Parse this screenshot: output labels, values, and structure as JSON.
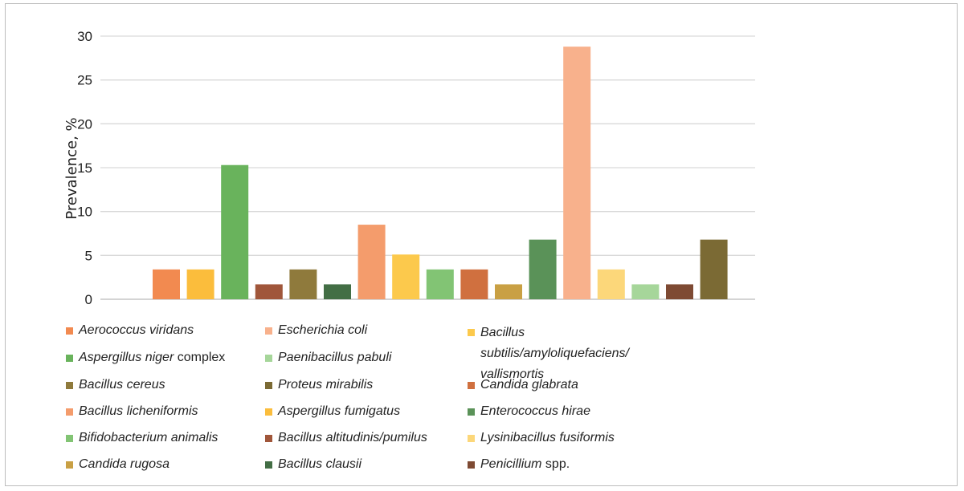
{
  "chart_data": {
    "type": "bar",
    "title": "",
    "xlabel": "",
    "ylabel": "Prevalence, %",
    "ylim": [
      0,
      30
    ],
    "yticks": [
      0,
      5,
      10,
      15,
      20,
      25,
      30
    ],
    "grid": true,
    "legend_placement": "bottom",
    "categories": [
      "Aerococcus viridans",
      "Aspergillus fumigatus",
      "Aspergillus niger complex",
      "Bacillus altitudinis/pumilus",
      "Bacillus cereus",
      "Bacillus clausii",
      "Bacillus licheniformis",
      "Bacillus subtilis/amyloliquefaciens/vallismortis",
      "Bifidobacterium animalis",
      "Candida glabrata",
      "Candida rugosa",
      "Enterococcus hirae",
      "Escherichia coli",
      "Lysinibacillus fusiformis",
      "Paenibacillus pabuli",
      "Penicillium spp.",
      "Proteus mirabilis"
    ],
    "values": [
      3.4,
      3.4,
      15.3,
      1.7,
      3.4,
      1.7,
      8.5,
      5.1,
      3.4,
      3.4,
      1.7,
      6.8,
      28.8,
      3.4,
      1.7,
      1.7,
      6.8
    ],
    "colors": [
      "#f28a50",
      "#fbbd3c",
      "#69b35c",
      "#a0563a",
      "#8f7a3c",
      "#436e45",
      "#f49c6c",
      "#fcc94c",
      "#82c474",
      "#d0703f",
      "#c9a044",
      "#5a9258",
      "#f8b18c",
      "#fcd77a",
      "#a6d69a",
      "#7e4a33",
      "#7b6a34"
    ]
  },
  "legend": [
    {
      "italic": "Aerococcus viridans",
      "suffix": "",
      "color": "#f28a50"
    },
    {
      "italic": "Escherichia coli",
      "suffix": "",
      "color": "#f8b18c"
    },
    {
      "italic": "Bacillus subtilis/amyloliquefaciens/ vallismortis",
      "suffix": "",
      "color": "#fcc94c"
    },
    {
      "italic": "Aspergillus niger",
      "suffix": " complex",
      "color": "#69b35c"
    },
    {
      "italic": "Paenibacillus pabuli",
      "suffix": "",
      "color": "#a6d69a"
    },
    {
      "italic": "Bacillus cereus",
      "suffix": "",
      "color": "#8f7a3c"
    },
    {
      "italic": "Proteus mirabilis",
      "suffix": "",
      "color": "#7b6a34"
    },
    {
      "italic": "Candida glabrata",
      "suffix": "",
      "color": "#d0703f"
    },
    {
      "italic": "Bacillus licheniformis",
      "suffix": "",
      "color": "#f49c6c"
    },
    {
      "italic": "Aspergillus fumigatus",
      "suffix": "",
      "color": "#fbbd3c"
    },
    {
      "italic": "Enterococcus hirae",
      "suffix": "",
      "color": "#5a9258"
    },
    {
      "italic": "Bifidobacterium animalis",
      "suffix": "",
      "color": "#82c474"
    },
    {
      "italic": "Bacillus altitudinis/pumilus",
      "suffix": "",
      "color": "#a0563a"
    },
    {
      "italic": "Lysinibacillus fusiformis",
      "suffix": "",
      "color": "#fcd77a"
    },
    {
      "italic": "Candida rugosa",
      "suffix": "",
      "color": "#c9a044"
    },
    {
      "italic": "Bacillus clausii",
      "suffix": "",
      "color": "#436e45"
    },
    {
      "italic": "Penicillium",
      "suffix": " spp.",
      "color": "#7e4a33"
    }
  ]
}
